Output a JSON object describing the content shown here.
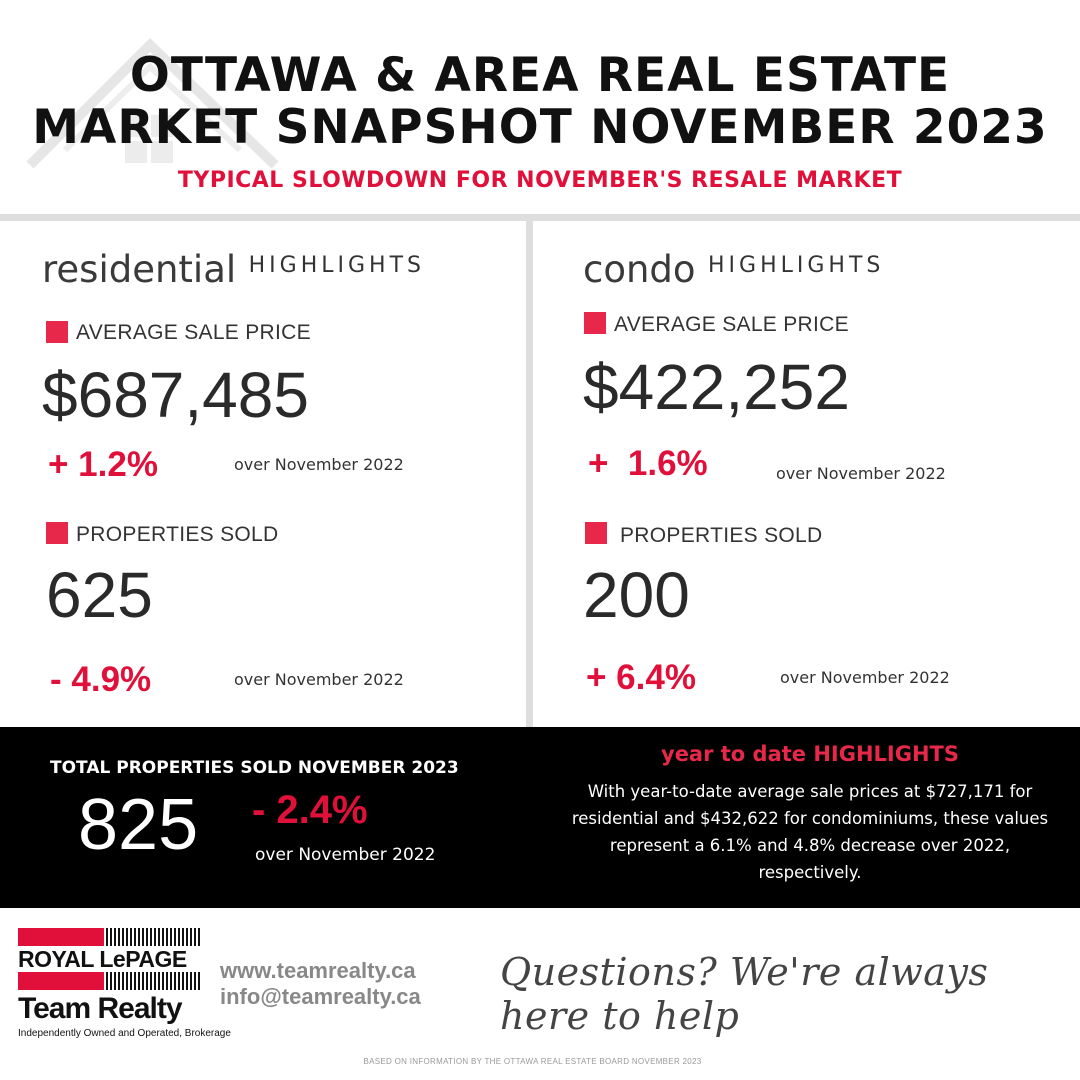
{
  "header": {
    "title_line1": "OTTAWA & AREA REAL ESTATE",
    "title_line2": "MARKET SNAPSHOT NOVEMBER 2023",
    "subtitle": "TYPICAL SLOWDOWN FOR NOVEMBER'S RESALE MARKET"
  },
  "residential": {
    "heading_big": "residential",
    "heading_small": "HIGHLIGHTS",
    "avg_label": "AVERAGE SALE PRICE",
    "avg_value": "$687,485",
    "avg_change": "+ 1.2%",
    "avg_over": "over November 2022",
    "sold_label": "PROPERTIES SOLD",
    "sold_value": "625",
    "sold_change": "- 4.9%",
    "sold_over": "over November 2022"
  },
  "condo": {
    "heading_big": "condo",
    "heading_small": "HIGHLIGHTS",
    "avg_label": "AVERAGE SALE PRICE",
    "avg_value": "$422,252",
    "avg_change": "+  1.6%",
    "avg_over": "over November 2022",
    "sold_label": "PROPERTIES SOLD",
    "sold_value": "200",
    "sold_change": "+ 6.4%",
    "sold_over": "over November 2022"
  },
  "total": {
    "label": "TOTAL PROPERTIES SOLD NOVEMBER 2023",
    "value": "825",
    "change": "- 2.4%",
    "over": "over November 2022"
  },
  "ytd": {
    "title": "year to date HIGHLIGHTS",
    "text": "With year-to-date average sale prices at $727,171 for residential and $432,622 for condominiums, these values represent a 6.1% and 4.8% decrease over 2022, respectively."
  },
  "footer": {
    "brand_line1": "ROYAL LePAGE",
    "brand_line2": "Team Realty",
    "brand_tagline": "Independently Owned and Operated, Brokerage",
    "website": "www.teamrealty.ca",
    "email": "info@teamrealty.ca",
    "slogan": "Questions? We're always here to help",
    "source": "BASED ON INFORMATION BY THE OTTAWA REAL ESTATE BOARD NOVEMBER 2023"
  },
  "colors": {
    "accent": "#e0103a",
    "square": "#e8284a",
    "band": "#000000",
    "divider": "#dedede"
  },
  "icons": [
    "house-logo-icon",
    "red-square-icon"
  ]
}
